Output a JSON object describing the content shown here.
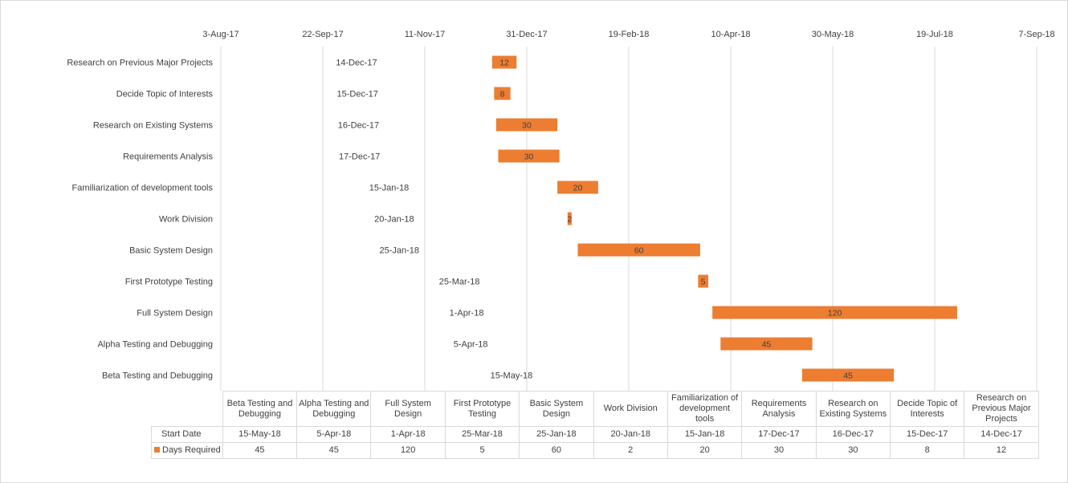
{
  "chart_data": {
    "type": "bar",
    "orientation": "horizontal",
    "stacked": true,
    "x_axis": {
      "ticks": [
        "3-Aug-17",
        "22-Sep-17",
        "11-Nov-17",
        "31-Dec-17",
        "19-Feb-18",
        "10-Apr-18",
        "30-May-18",
        "19-Jul-18",
        "7-Sep-18"
      ],
      "range": [
        "2017-08-03",
        "2018-09-07"
      ],
      "position": "top"
    },
    "grid": true,
    "categories": [
      "Research on Previous Major Projects",
      "Decide Topic of Interests",
      "Research on Existing Systems",
      "Requirements Analysis",
      "Familiarization of development tools",
      "Work Division",
      "Basic System Design",
      "First Prototype Testing",
      "Full System Design",
      "Alpha Testing and Debugging",
      "Beta Testing and Debugging"
    ],
    "series": [
      {
        "name": "Start Date",
        "color": "none",
        "values": [
          "2017-12-14",
          "2017-12-15",
          "2017-12-16",
          "2017-12-17",
          "2018-01-15",
          "2018-01-20",
          "2018-01-25",
          "2018-03-25",
          "2018-04-01",
          "2018-04-05",
          "2018-05-15"
        ],
        "labels": [
          "14-Dec-17",
          "15-Dec-17",
          "16-Dec-17",
          "17-Dec-17",
          "15-Jan-18",
          "20-Jan-18",
          "25-Jan-18",
          "25-Mar-18",
          "1-Apr-18",
          "5-Apr-18",
          "15-May-18"
        ]
      },
      {
        "name": "Days Required",
        "color": "#ed7d31",
        "values": [
          12,
          8,
          30,
          30,
          20,
          2,
          60,
          5,
          120,
          45,
          45
        ]
      }
    ],
    "data_table": {
      "columns": [
        "Beta Testing and Debugging",
        "Alpha Testing and Debugging",
        "Full System Design",
        "First Prototype Testing",
        "Basic System Design",
        "Work Division",
        "Familiarization of development tools",
        "Requirements Analysis",
        "Research on Existing Systems",
        "Decide Topic of Interests",
        "Research on Previous Major Projects"
      ],
      "rows": [
        {
          "label": "Start Date",
          "values": [
            "15-May-18",
            "5-Apr-18",
            "1-Apr-18",
            "25-Mar-18",
            "25-Jan-18",
            "20-Jan-18",
            "15-Jan-18",
            "17-Dec-17",
            "16-Dec-17",
            "15-Dec-17",
            "14-Dec-17"
          ]
        },
        {
          "label": "Days Required",
          "values": [
            "45",
            "45",
            "120",
            "5",
            "60",
            "2",
            "20",
            "30",
            "30",
            "8",
            "12"
          ]
        }
      ]
    }
  }
}
